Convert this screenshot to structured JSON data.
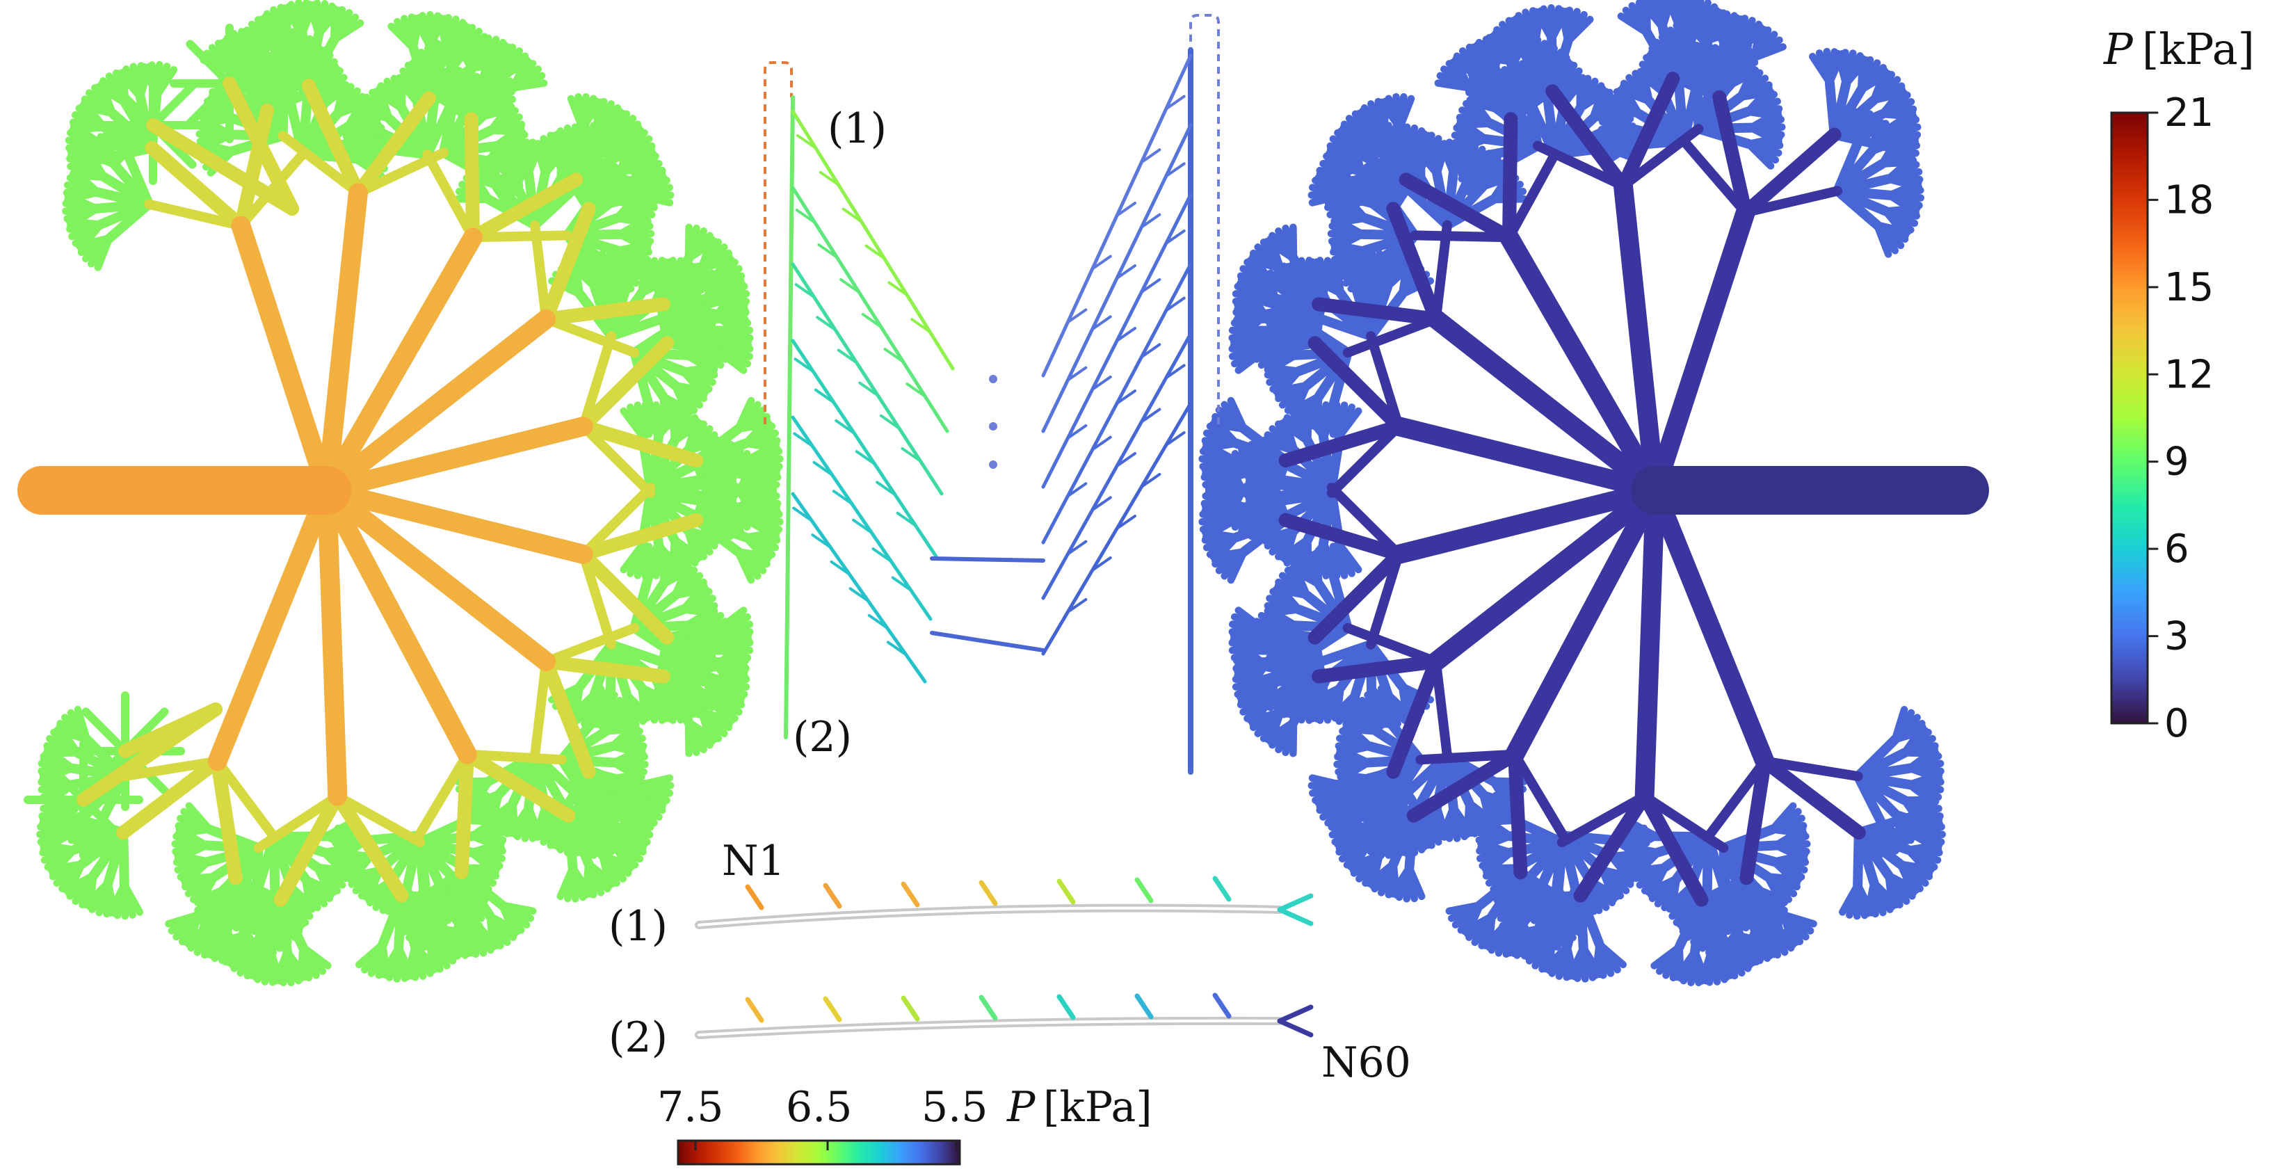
{
  "colors": {
    "jet": [
      "#30123b",
      "#4145ab",
      "#4675ed",
      "#39a2fc",
      "#1bcfd4",
      "#24eca6",
      "#61fc6c",
      "#a4fc3b",
      "#d1e834",
      "#f3c63a",
      "#fe9b2d",
      "#f36315",
      "#d93806",
      "#b11901",
      "#7a0402"
    ],
    "left_trunk": "#f6a03c",
    "left_main": "#f2b03e",
    "left_mid": "#d6d93f",
    "left_outer": "#7ff25e",
    "right_trunk": "#36328a",
    "right_main": "#3b35a0",
    "right_outer": "#4866d6",
    "dash_left": "#e07a3a",
    "dash_right": "#6d7fd6"
  },
  "labels": {
    "branch1": "(1)",
    "branch2": "(2)",
    "path1": "(1)",
    "path2": "(2)",
    "n1": "N1",
    "n60": "N60"
  },
  "colorbar_main": {
    "var": "P",
    "unit": "[kPa]",
    "min": 0,
    "max": 21,
    "ticks": [
      "21",
      "18",
      "15",
      "12",
      "9",
      "6",
      "3",
      "0"
    ]
  },
  "colorbar_small": {
    "var": "P",
    "unit": "[kPa]",
    "ticks": [
      "7.5",
      "6.5",
      "5.5"
    ],
    "min": 5.5,
    "max": 7.5
  }
}
